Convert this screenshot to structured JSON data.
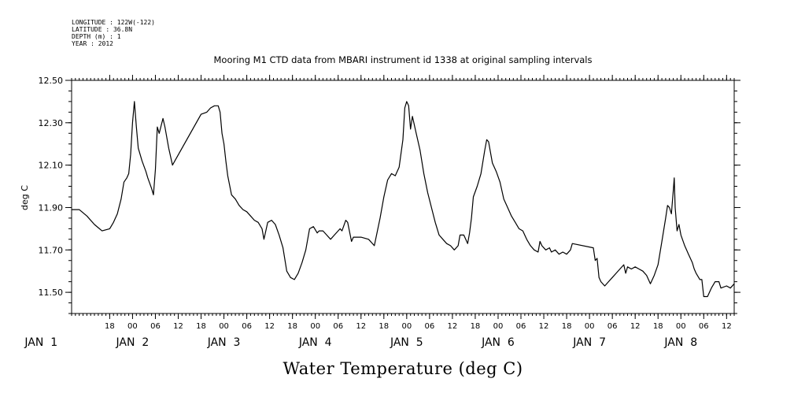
{
  "header": {
    "meta_lines": [
      "LONGITUDE : 122W(-122)",
      "LATITUDE : 36.8N",
      "DEPTH (m) : 1",
      "YEAR : 2012"
    ],
    "title": "Mooring M1 CTD data from MBARI instrument id 1338 at original sampling intervals"
  },
  "chart_data": {
    "type": "line",
    "title": "Mooring M1 CTD data from MBARI instrument id 1338 at original sampling intervals",
    "xlabel": "Water Temperature (deg C)",
    "ylabel": "deg C",
    "ylim": [
      11.4,
      12.5
    ],
    "xlim": [
      "2012-01-01T08:00",
      "2012-01-08T14:00"
    ],
    "y_tick_labels": [
      "12.50",
      "12.30",
      "12.10",
      "11.90",
      "11.70",
      "11.50"
    ],
    "y_tick_values": [
      12.5,
      12.3,
      12.1,
      11.9,
      11.7,
      11.5
    ],
    "x_hour_ticks": [
      {
        "t": "2012-01-01T18:00",
        "label": "18"
      },
      {
        "t": "2012-01-02T00:00",
        "label": "00"
      },
      {
        "t": "2012-01-02T06:00",
        "label": "06"
      },
      {
        "t": "2012-01-02T12:00",
        "label": "12"
      },
      {
        "t": "2012-01-02T18:00",
        "label": "18"
      },
      {
        "t": "2012-01-03T00:00",
        "label": "00"
      },
      {
        "t": "2012-01-03T06:00",
        "label": "06"
      },
      {
        "t": "2012-01-03T12:00",
        "label": "12"
      },
      {
        "t": "2012-01-03T18:00",
        "label": "18"
      },
      {
        "t": "2012-01-04T00:00",
        "label": "00"
      },
      {
        "t": "2012-01-04T06:00",
        "label": "06"
      },
      {
        "t": "2012-01-04T12:00",
        "label": "12"
      },
      {
        "t": "2012-01-04T18:00",
        "label": "18"
      },
      {
        "t": "2012-01-05T00:00",
        "label": "00"
      },
      {
        "t": "2012-01-05T06:00",
        "label": "06"
      },
      {
        "t": "2012-01-05T12:00",
        "label": "12"
      },
      {
        "t": "2012-01-05T18:00",
        "label": "18"
      },
      {
        "t": "2012-01-06T00:00",
        "label": "00"
      },
      {
        "t": "2012-01-06T06:00",
        "label": "06"
      },
      {
        "t": "2012-01-06T12:00",
        "label": "12"
      },
      {
        "t": "2012-01-06T18:00",
        "label": "18"
      },
      {
        "t": "2012-01-07T00:00",
        "label": "00"
      },
      {
        "t": "2012-01-07T06:00",
        "label": "06"
      },
      {
        "t": "2012-01-07T12:00",
        "label": "12"
      },
      {
        "t": "2012-01-07T18:00",
        "label": "18"
      },
      {
        "t": "2012-01-08T00:00",
        "label": "00"
      },
      {
        "t": "2012-01-08T06:00",
        "label": "06"
      },
      {
        "t": "2012-01-08T12:00",
        "label": "12"
      }
    ],
    "x_day_labels": [
      {
        "t": "2012-01-01T00:00",
        "label": "JAN  1"
      },
      {
        "t": "2012-01-02T00:00",
        "label": "JAN  2"
      },
      {
        "t": "2012-01-03T00:00",
        "label": "JAN  3"
      },
      {
        "t": "2012-01-04T00:00",
        "label": "JAN  4"
      },
      {
        "t": "2012-01-05T00:00",
        "label": "JAN  5"
      },
      {
        "t": "2012-01-06T00:00",
        "label": "JAN  6"
      },
      {
        "t": "2012-01-07T00:00",
        "label": "JAN  7"
      },
      {
        "t": "2012-01-08T00:00",
        "label": "JAN  8"
      }
    ],
    "grid": false,
    "series": [
      {
        "color": "#000000",
        "points": [
          [
            "2012-01-01T08:00",
            11.89
          ],
          [
            "2012-01-01T10:00",
            11.89
          ],
          [
            "2012-01-01T12:00",
            11.86
          ],
          [
            "2012-01-01T14:00",
            11.82
          ],
          [
            "2012-01-01T16:00",
            11.79
          ],
          [
            "2012-01-01T18:00",
            11.8
          ],
          [
            "2012-01-01T19:00",
            11.83
          ],
          [
            "2012-01-01T20:00",
            11.87
          ],
          [
            "2012-01-01T21:00",
            11.94
          ],
          [
            "2012-01-01T21:45",
            12.02
          ],
          [
            "2012-01-01T22:30",
            12.04
          ],
          [
            "2012-01-01T23:00",
            12.06
          ],
          [
            "2012-01-01T23:30",
            12.15
          ],
          [
            "2012-01-02T00:00",
            12.3
          ],
          [
            "2012-01-02T00:30",
            12.4
          ],
          [
            "2012-01-02T01:00",
            12.28
          ],
          [
            "2012-01-02T01:30",
            12.18
          ],
          [
            "2012-01-02T02:30",
            12.12
          ],
          [
            "2012-01-02T03:30",
            12.07
          ],
          [
            "2012-01-02T04:00",
            12.04
          ],
          [
            "2012-01-02T05:00",
            11.99
          ],
          [
            "2012-01-02T05:30",
            11.96
          ],
          [
            "2012-01-02T06:00",
            12.08
          ],
          [
            "2012-01-02T06:30",
            12.28
          ],
          [
            "2012-01-02T07:00",
            12.25
          ],
          [
            "2012-01-02T08:00",
            12.32
          ],
          [
            "2012-01-02T08:30",
            12.28
          ],
          [
            "2012-01-02T09:30",
            12.18
          ],
          [
            "2012-01-02T10:30",
            12.1
          ],
          [
            "2012-01-02T18:00",
            12.34
          ],
          [
            "2012-01-02T19:30",
            12.35
          ],
          [
            "2012-01-02T20:30",
            12.37
          ],
          [
            "2012-01-02T21:30",
            12.38
          ],
          [
            "2012-01-02T22:30",
            12.38
          ],
          [
            "2012-01-02T23:00",
            12.35
          ],
          [
            "2012-01-02T23:30",
            12.25
          ],
          [
            "2012-01-03T00:00",
            12.2
          ],
          [
            "2012-01-03T00:30",
            12.12
          ],
          [
            "2012-01-03T01:00",
            12.05
          ],
          [
            "2012-01-03T02:00",
            11.96
          ],
          [
            "2012-01-03T03:00",
            11.94
          ],
          [
            "2012-01-03T04:00",
            11.91
          ],
          [
            "2012-01-03T05:00",
            11.89
          ],
          [
            "2012-01-03T06:00",
            11.88
          ],
          [
            "2012-01-03T07:00",
            11.86
          ],
          [
            "2012-01-03T08:00",
            11.84
          ],
          [
            "2012-01-03T09:00",
            11.83
          ],
          [
            "2012-01-03T10:00",
            11.8
          ],
          [
            "2012-01-03T10:30",
            11.75
          ],
          [
            "2012-01-03T11:00",
            11.79
          ],
          [
            "2012-01-03T11:30",
            11.83
          ],
          [
            "2012-01-03T12:30",
            11.84
          ],
          [
            "2012-01-03T13:30",
            11.82
          ],
          [
            "2012-01-03T14:30",
            11.77
          ],
          [
            "2012-01-03T15:30",
            11.71
          ],
          [
            "2012-01-03T16:30",
            11.6
          ],
          [
            "2012-01-03T17:30",
            11.57
          ],
          [
            "2012-01-03T18:30",
            11.56
          ],
          [
            "2012-01-03T19:30",
            11.59
          ],
          [
            "2012-01-03T20:30",
            11.64
          ],
          [
            "2012-01-03T21:30",
            11.7
          ],
          [
            "2012-01-03T22:30",
            11.8
          ],
          [
            "2012-01-03T23:30",
            11.81
          ],
          [
            "2012-01-04T00:30",
            11.78
          ],
          [
            "2012-01-04T01:00",
            11.79
          ],
          [
            "2012-01-04T02:00",
            11.79
          ],
          [
            "2012-01-04T03:00",
            11.77
          ],
          [
            "2012-01-04T04:00",
            11.75
          ],
          [
            "2012-01-04T05:00",
            11.77
          ],
          [
            "2012-01-04T06:00",
            11.79
          ],
          [
            "2012-01-04T06:30",
            11.8
          ],
          [
            "2012-01-04T07:00",
            11.79
          ],
          [
            "2012-01-04T08:00",
            11.84
          ],
          [
            "2012-01-04T08:30",
            11.83
          ],
          [
            "2012-01-04T09:30",
            11.74
          ],
          [
            "2012-01-04T10:00",
            11.76
          ],
          [
            "2012-01-04T12:00",
            11.76
          ],
          [
            "2012-01-04T14:00",
            11.75
          ],
          [
            "2012-01-04T15:30",
            11.72
          ],
          [
            "2012-01-04T17:00",
            11.85
          ],
          [
            "2012-01-04T18:00",
            11.95
          ],
          [
            "2012-01-04T19:00",
            12.03
          ],
          [
            "2012-01-04T20:00",
            12.06
          ],
          [
            "2012-01-04T21:00",
            12.05
          ],
          [
            "2012-01-04T22:00",
            12.09
          ],
          [
            "2012-01-04T23:00",
            12.22
          ],
          [
            "2012-01-04T23:30",
            12.37
          ],
          [
            "2012-01-05T00:00",
            12.4
          ],
          [
            "2012-01-05T00:30",
            12.38
          ],
          [
            "2012-01-05T01:00",
            12.27
          ],
          [
            "2012-01-05T01:30",
            12.33
          ],
          [
            "2012-01-05T02:30",
            12.25
          ],
          [
            "2012-01-05T03:30",
            12.17
          ],
          [
            "2012-01-05T04:30",
            12.06
          ],
          [
            "2012-01-05T05:30",
            11.97
          ],
          [
            "2012-01-05T06:30",
            11.9
          ],
          [
            "2012-01-05T07:30",
            11.83
          ],
          [
            "2012-01-05T08:30",
            11.77
          ],
          [
            "2012-01-05T09:30",
            11.75
          ],
          [
            "2012-01-05T10:30",
            11.73
          ],
          [
            "2012-01-05T11:30",
            11.72
          ],
          [
            "2012-01-05T12:30",
            11.7
          ],
          [
            "2012-01-05T13:30",
            11.72
          ],
          [
            "2012-01-05T14:00",
            11.77
          ],
          [
            "2012-01-05T15:00",
            11.77
          ],
          [
            "2012-01-05T16:00",
            11.73
          ],
          [
            "2012-01-05T16:30",
            11.78
          ],
          [
            "2012-01-05T17:00",
            11.85
          ],
          [
            "2012-01-05T17:30",
            11.95
          ],
          [
            "2012-01-05T18:30",
            12.0
          ],
          [
            "2012-01-05T19:30",
            12.06
          ],
          [
            "2012-01-05T20:30",
            12.17
          ],
          [
            "2012-01-05T21:00",
            12.22
          ],
          [
            "2012-01-05T21:30",
            12.21
          ],
          [
            "2012-01-05T22:00",
            12.16
          ],
          [
            "2012-01-05T22:30",
            12.11
          ],
          [
            "2012-01-05T23:30",
            12.07
          ],
          [
            "2012-01-06T00:30",
            12.02
          ],
          [
            "2012-01-06T01:30",
            11.94
          ],
          [
            "2012-01-06T02:30",
            11.9
          ],
          [
            "2012-01-06T03:30",
            11.86
          ],
          [
            "2012-01-06T04:30",
            11.83
          ],
          [
            "2012-01-06T05:30",
            11.8
          ],
          [
            "2012-01-06T06:30",
            11.79
          ],
          [
            "2012-01-06T07:30",
            11.75
          ],
          [
            "2012-01-06T08:30",
            11.72
          ],
          [
            "2012-01-06T09:30",
            11.7
          ],
          [
            "2012-01-06T10:30",
            11.69
          ],
          [
            "2012-01-06T11:00",
            11.74
          ],
          [
            "2012-01-06T11:30",
            11.72
          ],
          [
            "2012-01-06T12:30",
            11.7
          ],
          [
            "2012-01-06T13:30",
            11.71
          ],
          [
            "2012-01-06T14:00",
            11.69
          ],
          [
            "2012-01-06T15:00",
            11.7
          ],
          [
            "2012-01-06T16:00",
            11.68
          ],
          [
            "2012-01-06T17:00",
            11.69
          ],
          [
            "2012-01-06T18:00",
            11.68
          ],
          [
            "2012-01-06T19:00",
            11.7
          ],
          [
            "2012-01-06T19:30",
            11.73
          ],
          [
            "2012-01-07T01:00",
            11.71
          ],
          [
            "2012-01-07T01:30",
            11.65
          ],
          [
            "2012-01-07T02:00",
            11.66
          ],
          [
            "2012-01-07T02:30",
            11.57
          ],
          [
            "2012-01-07T03:00",
            11.55
          ],
          [
            "2012-01-07T04:00",
            11.53
          ],
          [
            "2012-01-07T05:00",
            11.55
          ],
          [
            "2012-01-07T06:00",
            11.57
          ],
          [
            "2012-01-07T07:00",
            11.59
          ],
          [
            "2012-01-07T08:00",
            11.61
          ],
          [
            "2012-01-07T09:00",
            11.63
          ],
          [
            "2012-01-07T09:30",
            11.59
          ],
          [
            "2012-01-07T10:00",
            11.62
          ],
          [
            "2012-01-07T11:00",
            11.61
          ],
          [
            "2012-01-07T12:00",
            11.62
          ],
          [
            "2012-01-07T13:00",
            11.61
          ],
          [
            "2012-01-07T14:00",
            11.6
          ],
          [
            "2012-01-07T15:00",
            11.58
          ],
          [
            "2012-01-07T16:00",
            11.54
          ],
          [
            "2012-01-07T17:00",
            11.58
          ],
          [
            "2012-01-07T18:00",
            11.63
          ],
          [
            "2012-01-07T19:00",
            11.74
          ],
          [
            "2012-01-07T20:00",
            11.85
          ],
          [
            "2012-01-07T20:30",
            11.91
          ],
          [
            "2012-01-07T21:00",
            11.9
          ],
          [
            "2012-01-07T21:30",
            11.87
          ],
          [
            "2012-01-07T22:00",
            11.98
          ],
          [
            "2012-01-07T22:15",
            12.04
          ],
          [
            "2012-01-07T22:30",
            11.9
          ],
          [
            "2012-01-07T23:00",
            11.79
          ],
          [
            "2012-01-07T23:30",
            11.82
          ],
          [
            "2012-01-08T00:00",
            11.77
          ],
          [
            "2012-01-08T01:00",
            11.72
          ],
          [
            "2012-01-08T02:00",
            11.68
          ],
          [
            "2012-01-08T03:00",
            11.64
          ],
          [
            "2012-01-08T03:30",
            11.61
          ],
          [
            "2012-01-08T04:00",
            11.59
          ],
          [
            "2012-01-08T05:00",
            11.56
          ],
          [
            "2012-01-08T05:30",
            11.56
          ],
          [
            "2012-01-08T06:00",
            11.48
          ],
          [
            "2012-01-08T07:00",
            11.48
          ],
          [
            "2012-01-08T08:00",
            11.52
          ],
          [
            "2012-01-08T09:00",
            11.55
          ],
          [
            "2012-01-08T10:00",
            11.55
          ],
          [
            "2012-01-08T10:30",
            11.52
          ],
          [
            "2012-01-08T12:00",
            11.53
          ],
          [
            "2012-01-08T13:00",
            11.52
          ],
          [
            "2012-01-08T14:00",
            11.54
          ]
        ]
      }
    ]
  }
}
